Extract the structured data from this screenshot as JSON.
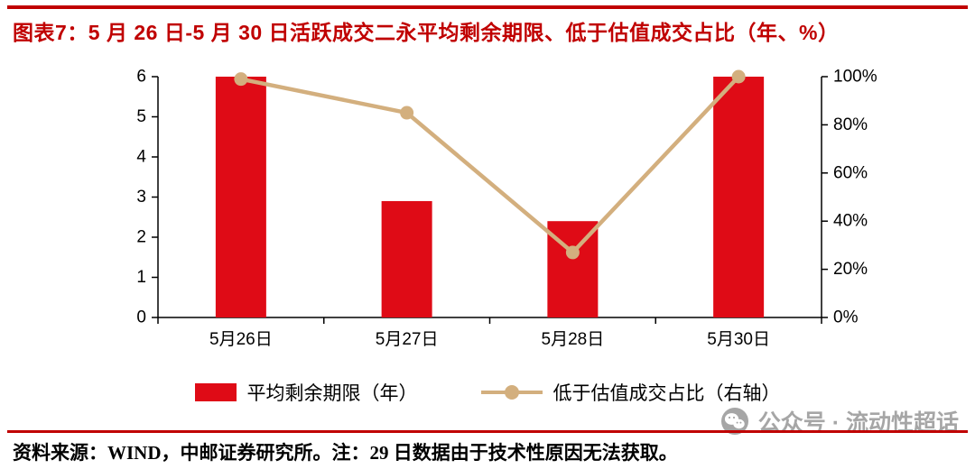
{
  "title": "图表7：5 月 26 日-5 月 30 日活跃成交二永平均剩余期限、低于估值成交占比（年、%）",
  "footer": {
    "source_note": "资料来源：WIND，中邮证券研究所。注：29 日数据由于技术性原因无法获取。"
  },
  "watermark": {
    "text": "公众号 · 流动性超话",
    "icon": "wechat-icon"
  },
  "colors": {
    "title_red": "#C00000",
    "rule_red": "#C00000",
    "bar_red": "#DF0B16",
    "line_tan": "#D3AF7E",
    "watermark_gray": "#A6A6A6",
    "axis_black": "#000000"
  },
  "chart_data": {
    "type": "combo-bar-line",
    "title": "图表7：5 月 26 日-5 月 30 日活跃成交二永平均剩余期限、低于估值成交占比（年、%）",
    "categories": [
      "5月26日",
      "5月27日",
      "5月28日",
      "5月30日"
    ],
    "series": [
      {
        "name": "平均剩余期限（年）",
        "type": "bar",
        "axis": "left",
        "values": [
          6.0,
          2.9,
          2.4,
          6.0
        ]
      },
      {
        "name": "低于估值成交占比（右轴）",
        "type": "line",
        "axis": "right",
        "values": [
          99,
          85,
          27,
          100
        ]
      }
    ],
    "left_axis": {
      "min": 0,
      "max": 6,
      "step": 1,
      "ticks": [
        "0",
        "1",
        "2",
        "3",
        "4",
        "5",
        "6"
      ]
    },
    "right_axis": {
      "min": 0,
      "max": 100,
      "step": 20,
      "ticks": [
        "0%",
        "20%",
        "40%",
        "60%",
        "80%",
        "100%"
      ]
    },
    "grid": false,
    "legend_position": "bottom"
  }
}
